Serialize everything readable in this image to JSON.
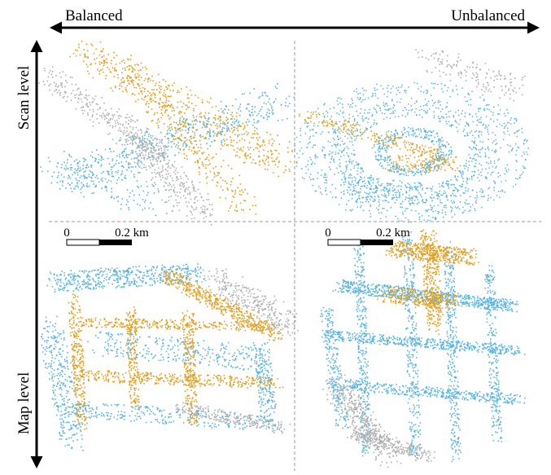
{
  "header": {
    "left": "Balanced",
    "right": "Unbalanced"
  },
  "rows": [
    {
      "label": "Scan level"
    },
    {
      "label": "Map level"
    }
  ],
  "scale_bars": [
    {
      "start": "0",
      "end": "0.2 km"
    },
    {
      "start": "0",
      "end": "0.2 km"
    }
  ]
}
